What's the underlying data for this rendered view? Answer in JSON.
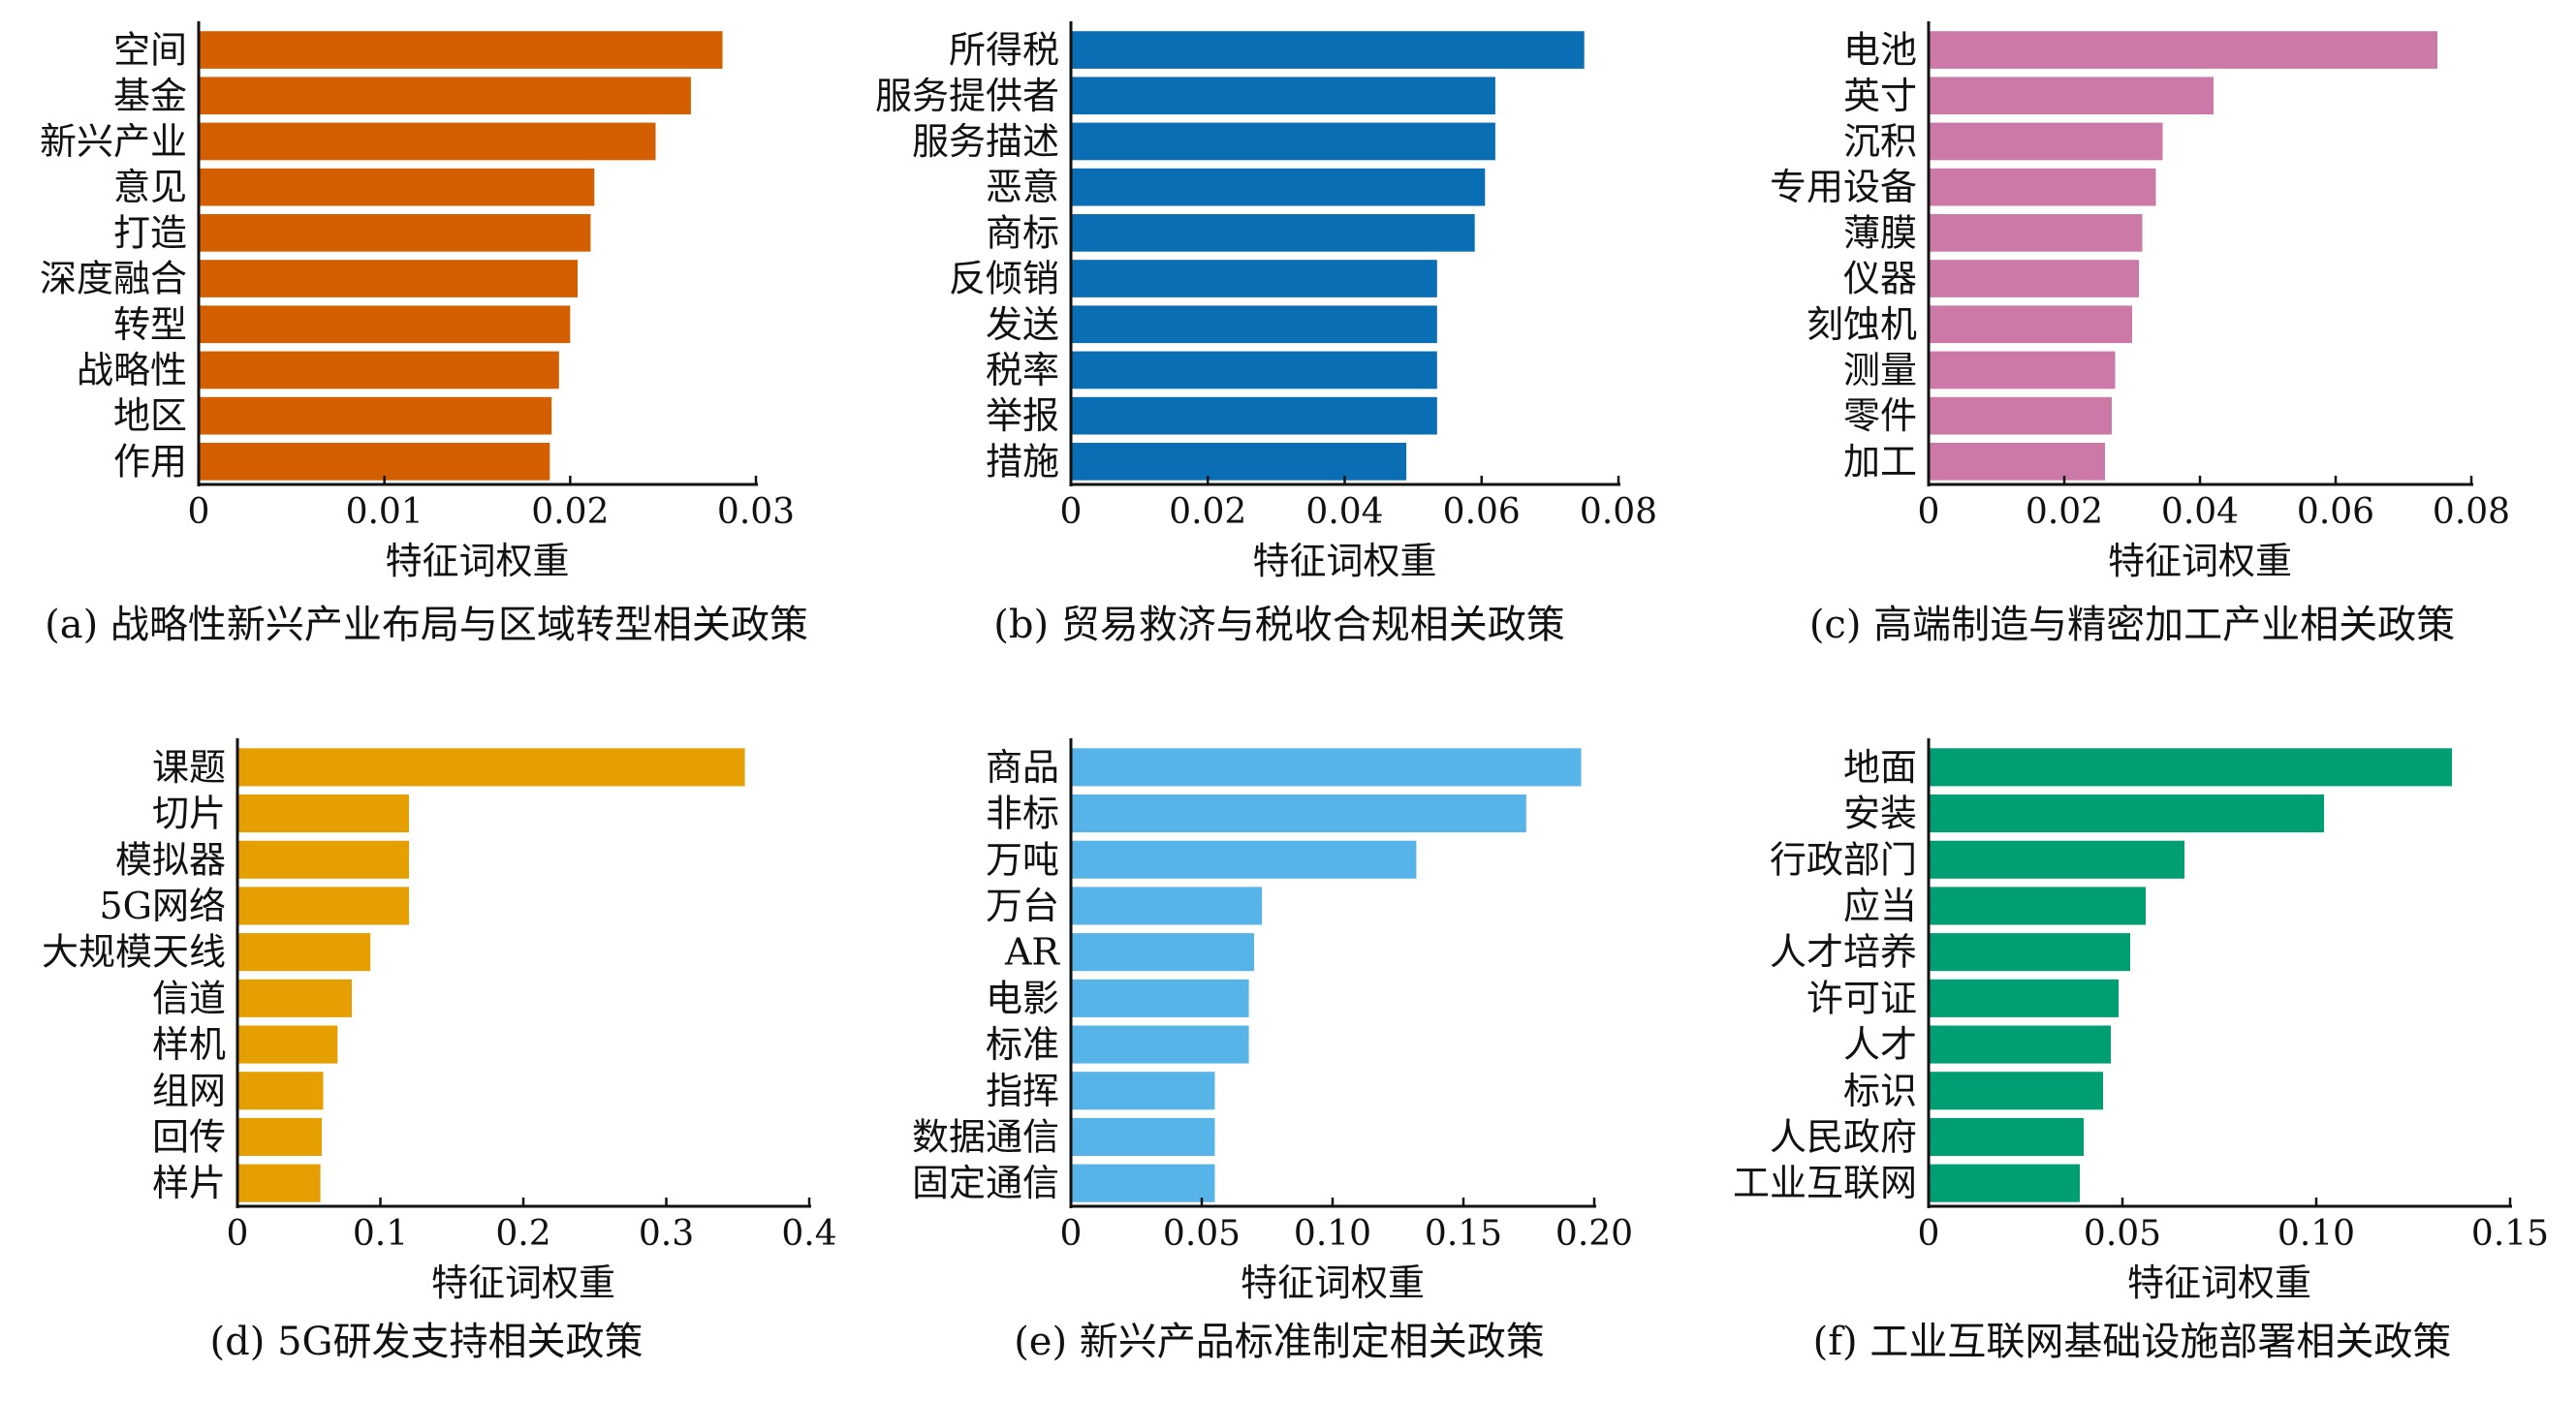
{
  "figure": {
    "panels": [
      {
        "caption": "(a) 战略性新兴产业布局与区域转型相关政策",
        "color": "#d45f00",
        "chart_data": {
          "type": "bar",
          "orientation": "horizontal",
          "categories": [
            "空间",
            "基金",
            "新兴产业",
            "意见",
            "打造",
            "深度融合",
            "转型",
            "战略性",
            "地区",
            "作用"
          ],
          "values": [
            0.0282,
            0.0265,
            0.0246,
            0.0213,
            0.0211,
            0.0204,
            0.02,
            0.0194,
            0.019,
            0.0189
          ],
          "xlabel": "特征词权重",
          "xlim": [
            0,
            0.03
          ],
          "xticks": [
            0,
            0.01,
            0.02,
            0.03
          ],
          "xtick_labels": [
            "0",
            "0.01",
            "0.02",
            "0.03"
          ]
        }
      },
      {
        "caption": "(b) 贸易救济与税收合规相关政策",
        "color": "#0a6eb4",
        "chart_data": {
          "type": "bar",
          "orientation": "horizontal",
          "categories": [
            "所得税",
            "服务提供者",
            "服务描述",
            "恶意",
            "商标",
            "反倾销",
            "发送",
            "税率",
            "举报",
            "措施"
          ],
          "values": [
            0.075,
            0.062,
            0.062,
            0.0605,
            0.059,
            0.0535,
            0.0535,
            0.0535,
            0.0535,
            0.049
          ],
          "xlabel": "特征词权重",
          "xlim": [
            0,
            0.08
          ],
          "xticks": [
            0,
            0.02,
            0.04,
            0.06,
            0.08
          ],
          "xtick_labels": [
            "0",
            "0.02",
            "0.04",
            "0.06",
            "0.08"
          ]
        }
      },
      {
        "caption": "(c) 高端制造与精密加工产业相关政策",
        "color": "#cc79a7",
        "chart_data": {
          "type": "bar",
          "orientation": "horizontal",
          "categories": [
            "电池",
            "英寸",
            "沉积",
            "专用设备",
            "薄膜",
            "仪器",
            "刻蚀机",
            "测量",
            "零件",
            "加工"
          ],
          "values": [
            0.075,
            0.042,
            0.0345,
            0.0335,
            0.0315,
            0.031,
            0.03,
            0.0275,
            0.027,
            0.026
          ],
          "xlabel": "特征词权重",
          "xlim": [
            0,
            0.08
          ],
          "xticks": [
            0,
            0.02,
            0.04,
            0.06,
            0.08
          ],
          "xtick_labels": [
            "0",
            "0.02",
            "0.04",
            "0.06",
            "0.08"
          ]
        }
      },
      {
        "caption": "(d) 5G研发支持相关政策",
        "color": "#e69f00",
        "chart_data": {
          "type": "bar",
          "orientation": "horizontal",
          "categories": [
            "课题",
            "切片",
            "模拟器",
            "5G网络",
            "大规模天线",
            "信道",
            "样机",
            "组网",
            "回传",
            "样片"
          ],
          "values": [
            0.355,
            0.12,
            0.12,
            0.12,
            0.093,
            0.08,
            0.07,
            0.06,
            0.059,
            0.058
          ],
          "xlabel": "特征词权重",
          "xlim": [
            0,
            0.4
          ],
          "xticks": [
            0,
            0.1,
            0.2,
            0.3,
            0.4
          ],
          "xtick_labels": [
            "0",
            "0.1",
            "0.2",
            "0.3",
            "0.4"
          ]
        }
      },
      {
        "caption": "(e) 新兴产品标准制定相关政策",
        "color": "#56b4e9",
        "chart_data": {
          "type": "bar",
          "orientation": "horizontal",
          "categories": [
            "商品",
            "非标",
            "万吨",
            "万台",
            "AR",
            "电影",
            "标准",
            "指挥",
            "数据通信",
            "固定通信"
          ],
          "values": [
            0.195,
            0.174,
            0.132,
            0.073,
            0.07,
            0.068,
            0.068,
            0.055,
            0.055,
            0.055
          ],
          "xlabel": "特征词权重",
          "xlim": [
            0,
            0.2
          ],
          "xticks": [
            0,
            0.05,
            0.1,
            0.15,
            0.2
          ],
          "xtick_labels": [
            "0",
            "0.05",
            "0.10",
            "0.15",
            "0.20"
          ]
        }
      },
      {
        "caption": "(f) 工业互联网基础设施部署相关政策",
        "color": "#009e73",
        "chart_data": {
          "type": "bar",
          "orientation": "horizontal",
          "categories": [
            "地面",
            "安装",
            "行政部门",
            "应当",
            "人才培养",
            "许可证",
            "人才",
            "标识",
            "人民政府",
            "工业互联网"
          ],
          "values": [
            0.135,
            0.102,
            0.066,
            0.056,
            0.052,
            0.049,
            0.047,
            0.045,
            0.04,
            0.039
          ],
          "xlabel": "特征词权重",
          "xlim": [
            0,
            0.15
          ],
          "xticks": [
            0,
            0.05,
            0.1,
            0.15
          ],
          "xtick_labels": [
            "0",
            "0.05",
            "0.10",
            "0.15"
          ]
        }
      }
    ]
  }
}
